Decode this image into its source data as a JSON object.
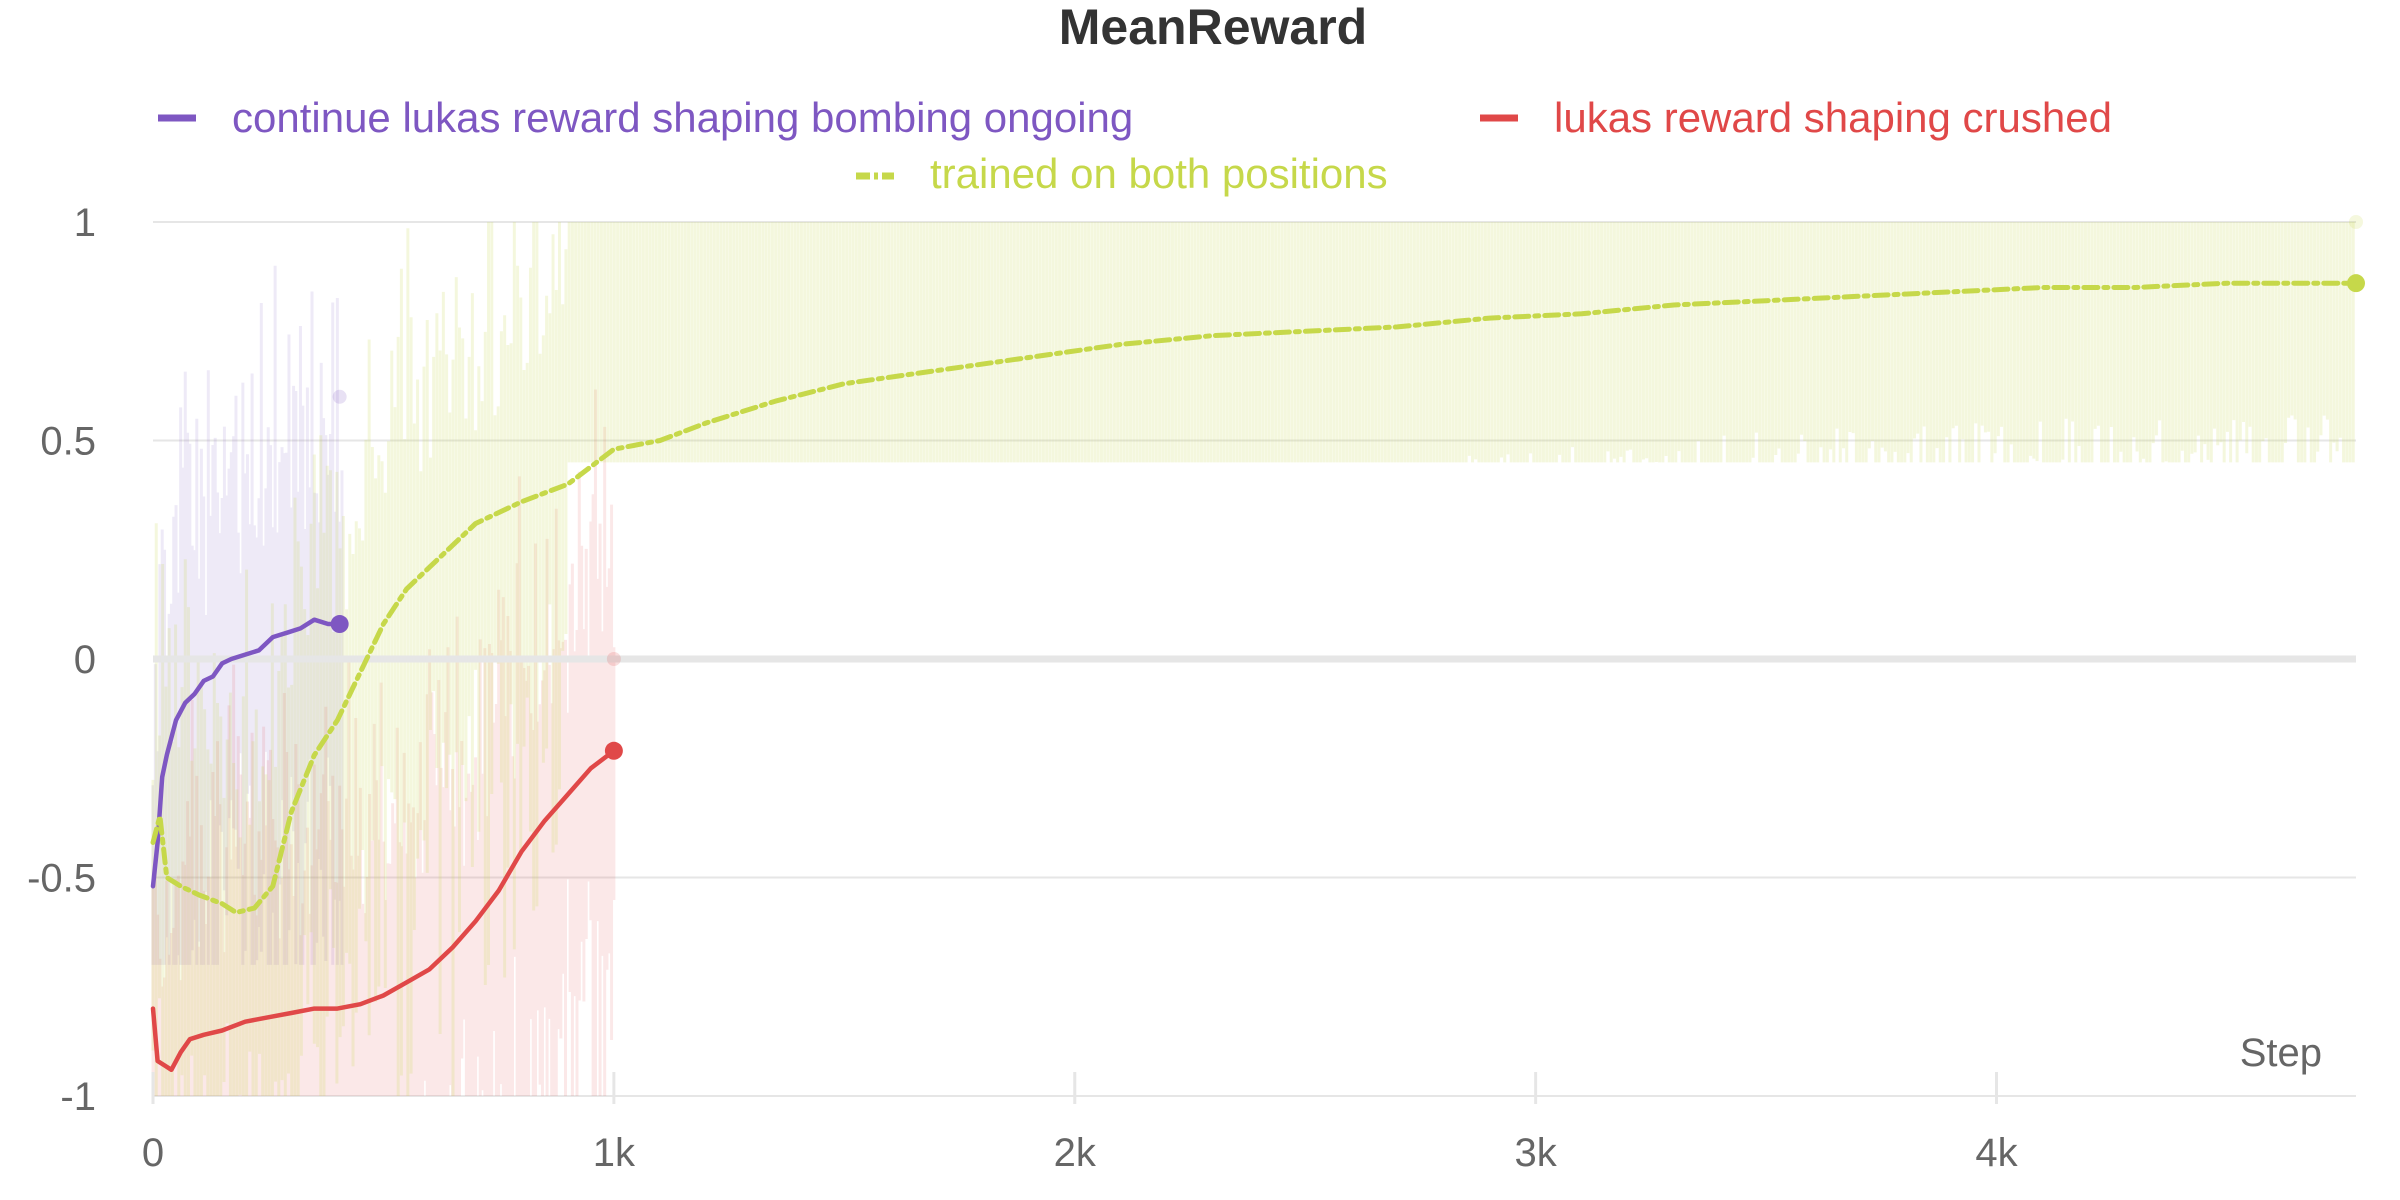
{
  "chart_data": {
    "type": "line",
    "title": "MeanReward",
    "xlabel": "Step",
    "ylabel": "",
    "xlim": [
      0,
      4780
    ],
    "ylim": [
      -1,
      1
    ],
    "x_ticks": [
      {
        "value": 0,
        "label": "0"
      },
      {
        "value": 1000,
        "label": "1k"
      },
      {
        "value": 2000,
        "label": "2k"
      },
      {
        "value": 3000,
        "label": "3k"
      },
      {
        "value": 4000,
        "label": "4k"
      }
    ],
    "y_ticks": [
      {
        "value": 1,
        "label": "1"
      },
      {
        "value": 0.5,
        "label": "0.5"
      },
      {
        "value": 0,
        "label": "0"
      },
      {
        "value": -0.5,
        "label": "-0.5"
      },
      {
        "value": -1,
        "label": "-1"
      }
    ],
    "grid": true,
    "legend_position": "top",
    "series": [
      {
        "name": "continue lukas reward shaping bombing ongoing",
        "color": "#7e57c2",
        "dash": "solid",
        "x": [
          0,
          10,
          20,
          30,
          50,
          70,
          90,
          110,
          130,
          150,
          170,
          200,
          230,
          260,
          290,
          320,
          350,
          380,
          405
        ],
        "y": [
          -0.52,
          -0.42,
          -0.27,
          -0.22,
          -0.14,
          -0.1,
          -0.08,
          -0.05,
          -0.04,
          -0.01,
          0.0,
          0.01,
          0.02,
          0.05,
          0.06,
          0.07,
          0.09,
          0.08,
          0.08
        ],
        "raw_range_x": [
          0,
          410
        ],
        "raw_range_y": [
          -0.7,
          0.9
        ]
      },
      {
        "name": "lukas reward shaping crushed",
        "color": "#e04848",
        "dash": "solid",
        "x": [
          0,
          10,
          25,
          40,
          60,
          80,
          110,
          150,
          200,
          250,
          300,
          350,
          400,
          450,
          500,
          550,
          600,
          650,
          700,
          750,
          800,
          850,
          900,
          950,
          1000
        ],
        "y": [
          -0.8,
          -0.92,
          -0.93,
          -0.94,
          -0.9,
          -0.87,
          -0.86,
          -0.85,
          -0.83,
          -0.82,
          -0.81,
          -0.8,
          -0.8,
          -0.79,
          -0.77,
          -0.74,
          -0.71,
          -0.66,
          -0.6,
          -0.53,
          -0.44,
          -0.37,
          -0.31,
          -0.25,
          -0.21
        ],
        "raw_range_x": [
          0,
          1000
        ],
        "raw_range_y": [
          -1,
          0.7
        ]
      },
      {
        "name": "trained on both positions",
        "color": "#c6d84a",
        "dash": "dashdot",
        "x": [
          0,
          15,
          30,
          60,
          100,
          150,
          180,
          220,
          260,
          300,
          350,
          400,
          450,
          500,
          550,
          600,
          700,
          800,
          900,
          1000,
          1100,
          1200,
          1350,
          1500,
          1700,
          1900,
          2100,
          2300,
          2500,
          2700,
          2900,
          3100,
          3300,
          3500,
          3700,
          3900,
          4100,
          4300,
          4500,
          4700,
          4780
        ],
        "y": [
          -0.42,
          -0.36,
          -0.5,
          -0.52,
          -0.54,
          -0.56,
          -0.58,
          -0.57,
          -0.52,
          -0.35,
          -0.22,
          -0.14,
          -0.03,
          0.08,
          0.16,
          0.21,
          0.31,
          0.36,
          0.4,
          0.48,
          0.5,
          0.54,
          0.59,
          0.63,
          0.66,
          0.69,
          0.72,
          0.74,
          0.75,
          0.76,
          0.78,
          0.79,
          0.81,
          0.82,
          0.83,
          0.84,
          0.85,
          0.85,
          0.86,
          0.86,
          0.86
        ],
        "raw_range_x": [
          0,
          4780
        ],
        "raw_range_y": [
          -1,
          1
        ]
      }
    ]
  }
}
